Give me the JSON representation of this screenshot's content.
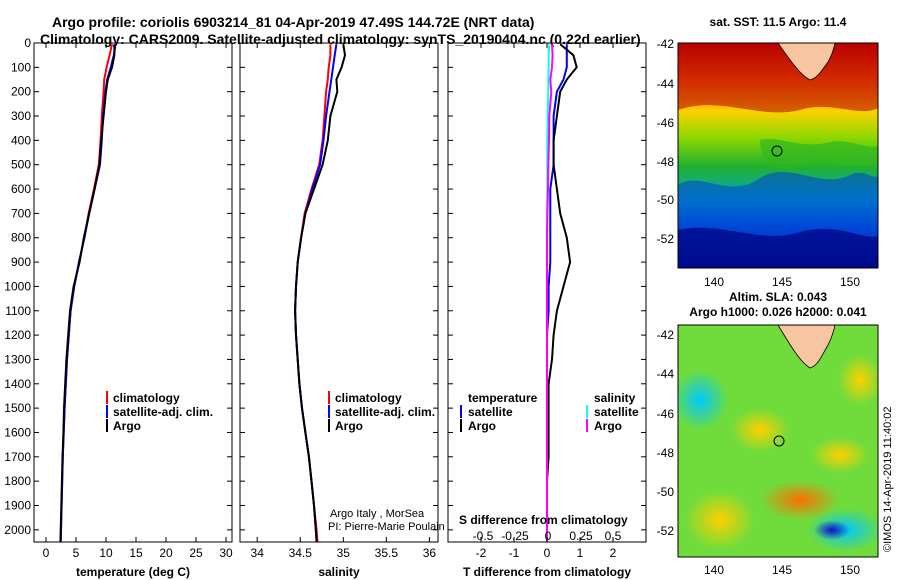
{
  "title_line1": "Argo profile: coriolis 6903214_81 04-Apr-2019 47.49S 144.72E (NRT data)",
  "title_line2": "Climatology: CARS2009. Satellite-adjusted climatology: synTS_20190404.nc (0.22d earlier)",
  "sst_title": "sat. SST: 11.5 Argo: 11.4",
  "sla_title1": "Altim. SLA: 0.043",
  "sla_title2": "Argo h1000: 0.026 h2000: 0.041",
  "credit1": "Argo Italy , MorSea",
  "credit2": "PI: Pierre-Marie Poulain",
  "timestamp": "©IMOS 14-Apr-2019 11:40:02",
  "legend_temp": [
    "climatology",
    "satellite-adj. clim.",
    "Argo"
  ],
  "legend_sal": [
    "climatology",
    "satellite-adj. clim.",
    "Argo"
  ],
  "legend_diff_left_title": "temperature",
  "legend_diff_left": [
    "satellite",
    "Argo"
  ],
  "legend_diff_right_title": "salinity",
  "legend_diff_right": [
    "satellite",
    "Argo"
  ],
  "s_diff_label": "S difference from climatology",
  "s_diff_ticks": [
    "-0.5",
    "-0.25",
    "0",
    "0.25",
    "0.5"
  ],
  "map_lon_ticks": [
    "140",
    "145",
    "150"
  ],
  "map_lat_ticks": [
    "-42",
    "-44",
    "-46",
    "-48",
    "-50",
    "-52"
  ],
  "colors": {
    "climatology": "#ff0000",
    "satellite": "#0000ff",
    "argo": "#000000",
    "sat_sal": "#00ffff",
    "argo_sal": "#ff00ff"
  },
  "chart_data": [
    {
      "type": "line",
      "xlabel": "temperature (deg C)",
      "ylabel": "",
      "xlim": [
        -2,
        31
      ],
      "ylim": [
        2050,
        0
      ],
      "xticks": [
        0,
        5,
        10,
        15,
        20,
        25,
        30
      ],
      "yticks": [
        0,
        100,
        200,
        300,
        400,
        500,
        600,
        700,
        800,
        900,
        1000,
        1100,
        1200,
        1300,
        1400,
        1500,
        1600,
        1700,
        1800,
        1900,
        2000
      ],
      "depth": [
        5,
        50,
        100,
        150,
        200,
        300,
        400,
        500,
        600,
        700,
        800,
        900,
        1000,
        1100,
        1200,
        1300,
        1400,
        1500,
        1600,
        1700,
        1800,
        1900,
        2000,
        2050
      ],
      "series": [
        {
          "name": "climatology",
          "color": "#ff0000",
          "values": [
            11.0,
            10.6,
            10.1,
            9.7,
            9.6,
            9.3,
            9.1,
            8.8,
            8.0,
            7.1,
            6.4,
            5.5,
            4.7,
            4.1,
            3.8,
            3.5,
            3.3,
            3.1,
            2.95,
            2.8,
            2.7,
            2.6,
            2.5,
            2.45
          ]
        },
        {
          "name": "satellite-adj. clim.",
          "color": "#0000ff",
          "values": [
            11.6,
            11.3,
            10.8,
            10.2,
            9.9,
            9.5,
            9.3,
            9.0,
            8.1,
            7.2,
            6.4,
            5.5,
            4.7,
            4.1,
            3.8,
            3.5,
            3.3,
            3.1,
            2.95,
            2.8,
            2.7,
            2.6,
            2.5,
            2.45
          ]
        },
        {
          "name": "Argo",
          "color": "#000000",
          "values": [
            11.4,
            11.4,
            11.0,
            10.3,
            10.0,
            9.6,
            9.2,
            8.9,
            8.1,
            7.2,
            6.3,
            5.6,
            4.6,
            4.0,
            3.7,
            3.4,
            3.2,
            3.0,
            2.9,
            2.75,
            2.65,
            2.55,
            2.45,
            2.4
          ]
        }
      ]
    },
    {
      "type": "line",
      "xlabel": "salinity",
      "ylabel": "",
      "xlim": [
        33.8,
        36.1
      ],
      "ylim": [
        2050,
        0
      ],
      "xticks": [
        34,
        34.5,
        35,
        35.5,
        36
      ],
      "depth": [
        5,
        50,
        100,
        150,
        200,
        300,
        400,
        500,
        600,
        700,
        800,
        900,
        1000,
        1100,
        1200,
        1300,
        1400,
        1500,
        1600,
        1700,
        1800,
        1900,
        2000,
        2050
      ],
      "series": [
        {
          "name": "climatology",
          "color": "#ff0000",
          "values": [
            34.85,
            34.85,
            34.83,
            34.82,
            34.8,
            34.78,
            34.76,
            34.72,
            34.63,
            34.55,
            34.51,
            34.47,
            34.45,
            34.44,
            34.45,
            34.47,
            34.49,
            34.52,
            34.56,
            34.6,
            34.63,
            34.66,
            34.69,
            34.7
          ]
        },
        {
          "name": "satellite-adj. clim.",
          "color": "#0000ff",
          "values": [
            34.92,
            34.9,
            34.88,
            34.86,
            34.84,
            34.8,
            34.77,
            34.73,
            34.64,
            34.56,
            34.51,
            34.47,
            34.45,
            34.44,
            34.45,
            34.47,
            34.49,
            34.52,
            34.56,
            34.6,
            34.63,
            34.66,
            34.68,
            34.69
          ]
        },
        {
          "name": "Argo",
          "color": "#000000",
          "values": [
            35.0,
            35.02,
            34.98,
            34.92,
            34.93,
            34.85,
            34.82,
            34.76,
            34.66,
            34.56,
            34.51,
            34.47,
            34.45,
            34.44,
            34.45,
            34.47,
            34.49,
            34.52,
            34.56,
            34.6,
            34.63,
            34.66,
            34.68,
            34.69
          ]
        }
      ]
    },
    {
      "type": "line",
      "xlabel": "T difference from climatology",
      "ylabel": "",
      "xlim": [
        -3,
        3
      ],
      "ylim": [
        2050,
        0
      ],
      "xticks": [
        -2,
        -1,
        0,
        1,
        2
      ],
      "secondary_xlabel": "S difference from climatology",
      "secondary_xticks": [
        -0.5,
        -0.25,
        0,
        0.25,
        0.5
      ],
      "depth": [
        5,
        50,
        100,
        150,
        200,
        300,
        400,
        500,
        600,
        700,
        800,
        900,
        1000,
        1100,
        1200,
        1300,
        1400,
        1500,
        1600,
        1700,
        1800,
        1900,
        2000,
        2050
      ],
      "series": [
        {
          "name": "satellite",
          "color": "#0000ff",
          "values": [
            0.6,
            0.6,
            0.6,
            0.5,
            0.3,
            0.2,
            0.2,
            0.2,
            0.1,
            0.1,
            0.1,
            0.1,
            0.05,
            0.05,
            0.0,
            0.0,
            0.0,
            0.0,
            0.0,
            0.0,
            0.0,
            0.0,
            0.0,
            0.0
          ]
        },
        {
          "name": "Argo",
          "color": "#000000",
          "values": [
            0.4,
            0.8,
            0.9,
            0.6,
            0.4,
            0.3,
            0.2,
            0.2,
            0.3,
            0.4,
            0.6,
            0.7,
            0.5,
            0.3,
            0.2,
            0.15,
            0.05,
            0.05,
            0.05,
            0.05,
            0.0,
            0.0,
            0.0,
            0.0
          ]
        },
        {
          "name": "satellite (salinity)",
          "color": "#00ffff",
          "values": [
            0.07,
            0.05,
            0.05,
            0.04,
            0.04,
            0.02,
            0.01,
            0.01,
            0.01,
            0.01,
            0.0,
            0.0,
            0.0,
            0.0,
            0.0,
            0.0,
            0.0,
            0.0,
            0.0,
            0.0,
            0.0,
            0.0,
            0.0,
            0.0
          ]
        },
        {
          "name": "Argo (salinity)",
          "color": "#ff00ff",
          "values": [
            0.15,
            0.17,
            0.15,
            0.1,
            0.13,
            0.07,
            0.06,
            0.04,
            0.03,
            0.01,
            0.0,
            0.0,
            0.0,
            0.0,
            0.0,
            0.0,
            0.0,
            0.0,
            0.0,
            0.0,
            0.0,
            0.0,
            0.0,
            0.0
          ]
        }
      ]
    },
    {
      "type": "heatmap",
      "title": "sat. SST: 11.5 Argo: 11.4",
      "xlim": [
        137.5,
        152
      ],
      "ylim": [
        -53.3,
        -41.8
      ],
      "xticks": [
        140,
        145,
        150
      ],
      "yticks": [
        -42,
        -44,
        -46,
        -48,
        -50,
        -52
      ],
      "float_position": [
        144.72,
        -47.49
      ]
    },
    {
      "type": "heatmap",
      "title": "Altim. SLA: 0.043",
      "xlim": [
        137.5,
        152
      ],
      "ylim": [
        -53.3,
        -41.8
      ],
      "xticks": [
        140,
        145,
        150
      ],
      "yticks": [
        -42,
        -44,
        -46,
        -48,
        -50,
        -52
      ],
      "float_position": [
        144.72,
        -47.49
      ]
    }
  ]
}
